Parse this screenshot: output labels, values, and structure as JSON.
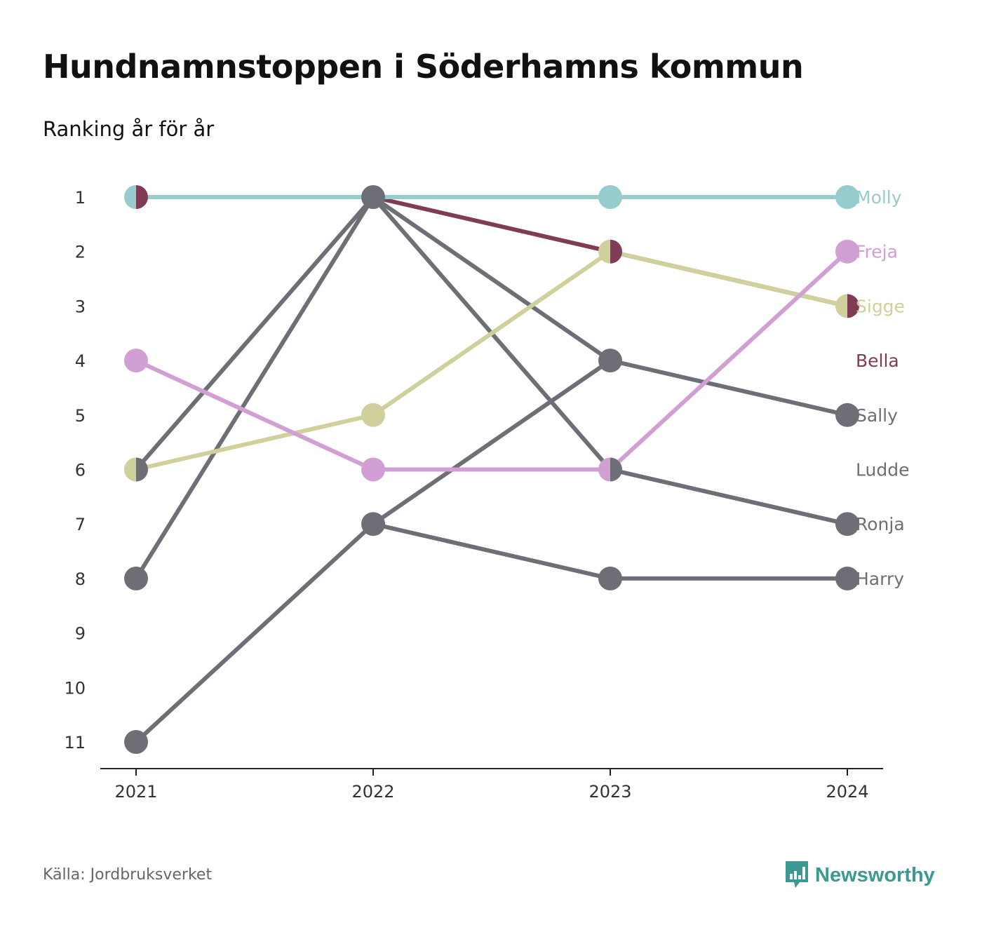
{
  "title": "Hundnamnstoppen i Söderhamns kommun",
  "subtitle": "Ranking år för år",
  "source": "Källa: Jordbruksverket",
  "brand": {
    "name": "Newsworthy",
    "color": "#3a9a91",
    "icon": "newsworthy-logo-icon"
  },
  "chart_data": {
    "type": "line",
    "x": [
      "2021",
      "2022",
      "2023",
      "2024"
    ],
    "y_ticks": [
      "1",
      "2",
      "3",
      "4",
      "5",
      "6",
      "7",
      "8",
      "9",
      "10",
      "11"
    ],
    "ylim": [
      1,
      11
    ],
    "y_inverted": true,
    "grid": false,
    "legend": "end-labels",
    "series": [
      {
        "name": "Harry",
        "color": "#6e6e76",
        "ranks": [
          11,
          7,
          8,
          8
        ]
      },
      {
        "name": "Ronja",
        "color": "#6e6e76",
        "ranks": [
          6,
          1,
          6,
          7
        ]
      },
      {
        "name": "Ludde",
        "color": "#6e6e76",
        "ranks": [
          8,
          1,
          null,
          null
        ]
      },
      {
        "name": "Sally",
        "color": "#6e6e76",
        "ranks": [
          null,
          7,
          4,
          5
        ]
      },
      {
        "name": "Sally",
        "color": "#6e6e76",
        "ranks": [
          null,
          1,
          4,
          null
        ]
      },
      {
        "name": "Bella",
        "color": "#7e3d54",
        "ranks": [
          1,
          1,
          2,
          3
        ]
      },
      {
        "name": "Sigge",
        "color": "#cfd09b",
        "ranks": [
          6,
          5,
          2,
          3
        ]
      },
      {
        "name": "Freja",
        "color": "#d19fd3",
        "ranks": [
          4,
          6,
          6,
          2
        ]
      },
      {
        "name": "Molly",
        "color": "#96cccb",
        "ranks": [
          1,
          1,
          1,
          1
        ]
      }
    ],
    "end_labels": [
      {
        "name": "Molly",
        "rank": 1,
        "color": "#96cccb"
      },
      {
        "name": "Freja",
        "rank": 2,
        "color": "#d19fd3"
      },
      {
        "name": "Sigge",
        "rank": 3,
        "color": "#cfd09b"
      },
      {
        "name": "Bella",
        "rank": 4,
        "color": "#7e3d54"
      },
      {
        "name": "Sally",
        "rank": 5,
        "color": "#6e6e76"
      },
      {
        "name": "Ludde",
        "rank": 6,
        "color": "#6e6e76"
      },
      {
        "name": "Ronja",
        "rank": 7,
        "color": "#6e6e76"
      },
      {
        "name": "Harry",
        "rank": 8,
        "color": "#6e6e76"
      }
    ],
    "markers": [
      {
        "x": "2021",
        "rank": 1,
        "left": "#96cccb",
        "right": "#7e3d54"
      },
      {
        "x": "2021",
        "rank": 4,
        "left": "#d19fd3",
        "right": "#d19fd3"
      },
      {
        "x": "2021",
        "rank": 6,
        "left": "#cfd09b",
        "right": "#6e6e76"
      },
      {
        "x": "2021",
        "rank": 8,
        "left": "#6e6e76",
        "right": "#6e6e76"
      },
      {
        "x": "2021",
        "rank": 11,
        "left": "#6e6e76",
        "right": "#6e6e76"
      },
      {
        "x": "2022",
        "rank": 1,
        "left": "#6e6e76",
        "right": "#6e6e76"
      },
      {
        "x": "2022",
        "rank": 5,
        "left": "#cfd09b",
        "right": "#cfd09b"
      },
      {
        "x": "2022",
        "rank": 6,
        "left": "#d19fd3",
        "right": "#d19fd3"
      },
      {
        "x": "2022",
        "rank": 7,
        "left": "#6e6e76",
        "right": "#6e6e76"
      },
      {
        "x": "2023",
        "rank": 1,
        "left": "#96cccb",
        "right": "#96cccb"
      },
      {
        "x": "2023",
        "rank": 2,
        "left": "#cfd09b",
        "right": "#7e3d54"
      },
      {
        "x": "2023",
        "rank": 4,
        "left": "#6e6e76",
        "right": "#6e6e76"
      },
      {
        "x": "2023",
        "rank": 6,
        "left": "#d19fd3",
        "right": "#6e6e76"
      },
      {
        "x": "2023",
        "rank": 8,
        "left": "#6e6e76",
        "right": "#6e6e76"
      },
      {
        "x": "2024",
        "rank": 1,
        "left": "#96cccb",
        "right": "#96cccb"
      },
      {
        "x": "2024",
        "rank": 2,
        "left": "#d19fd3",
        "right": "#d19fd3"
      },
      {
        "x": "2024",
        "rank": 3,
        "left": "#cfd09b",
        "right": "#7e3d54"
      },
      {
        "x": "2024",
        "rank": 5,
        "left": "#6e6e76",
        "right": "#6e6e76"
      },
      {
        "x": "2024",
        "rank": 7,
        "left": "#6e6e76",
        "right": "#6e6e76"
      },
      {
        "x": "2024",
        "rank": 8,
        "left": "#6e6e76",
        "right": "#6e6e76"
      }
    ]
  }
}
